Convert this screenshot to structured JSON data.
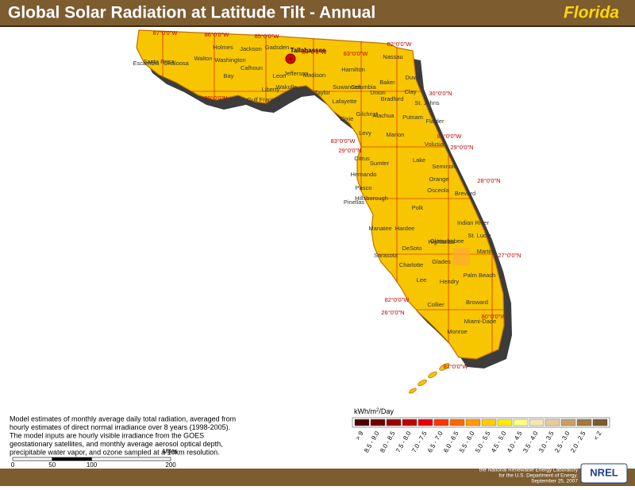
{
  "header": {
    "title": "Global Solar Radiation at Latitude Tilt - Annual",
    "state": "Florida"
  },
  "map": {
    "city": "Tallahassee",
    "counties": [
      "Escambia",
      "Santa Rosa",
      "Okaloosa",
      "Walton",
      "Holmes",
      "Washington",
      "Jackson",
      "Bay",
      "Calhoun",
      "Gulf",
      "Gadsden",
      "Leon",
      "Jefferson",
      "Wakulla",
      "Liberty",
      "Franklin",
      "Madison",
      "Hamilton",
      "Taylor",
      "Suwannee",
      "Columbia",
      "Baker",
      "Nassau",
      "Duval",
      "Clay",
      "St. Johns",
      "Union",
      "Bradford",
      "Lafayette",
      "Dixie",
      "Gilchrist",
      "Alachua",
      "Putnam",
      "Flagler",
      "Levy",
      "Marion",
      "Volusia",
      "Citrus",
      "Sumter",
      "Lake",
      "Seminole",
      "Hernando",
      "Orange",
      "Pasco",
      "Brevard",
      "Osceola",
      "Pinellas",
      "Hillsborough",
      "Polk",
      "Indian River",
      "Manatee",
      "Hardee",
      "Okeechobee",
      "St. Lucie",
      "Highlands",
      "DeSoto",
      "Sarasota",
      "Martin",
      "Charlotte",
      "Glades",
      "Lee",
      "Hendry",
      "Palm Beach",
      "Collier",
      "Broward",
      "Miami-Dade",
      "Monroe"
    ],
    "graticule_labels": [
      "87°0'0\"W",
      "86°0'0\"W",
      "85°0'0\"W",
      "84°0'0\"W",
      "83°0'0\"W",
      "82°0'0\"W",
      "30°0'0\"N",
      "30°0'0\"N",
      "83°0'0\"W",
      "29°0'0\"N",
      "81°0'0\"W",
      "29°0'0\"N",
      "28°0'0\"N",
      "27°0'0\"N",
      "82°0'0\"W",
      "26°0'0\"N",
      "80°0'0\"W",
      "81°0'0\"W"
    ]
  },
  "legend": {
    "unit": "kWh/m",
    "unit_sup": "2",
    "unit_tail": "/Day",
    "classes": [
      "> 9",
      "8.5 - 9.0",
      "8.0 - 8.5",
      "7.5 - 8.0",
      "7.0 - 7.5",
      "6.5 - 7.0",
      "6.0 - 6.5",
      "5.5 - 6.0",
      "5.0 - 5.5",
      "4.5 - 5.0",
      "4.0 - 4.5",
      "3.5 - 4.0",
      "3.0 - 3.5",
      "2.5 - 3.0",
      "2.0 - 2.5",
      "< 2"
    ],
    "colors": [
      "#4a0000",
      "#6e0000",
      "#990000",
      "#c00000",
      "#e60000",
      "#ff3300",
      "#ff6600",
      "#ff9900",
      "#ffcc00",
      "#ffee00",
      "#ffff80",
      "#f5e6b4",
      "#e6cc99",
      "#c8a064",
      "#a07840",
      "#7a5a2e"
    ]
  },
  "description": [
    "Model estimates of monthly average daily total radiation, averaged from",
    "hourly estimates of direct normal irradiance over 8 years (1998-2005).",
    "The model inputs are hourly visible irradiance from the GOES",
    "geostationary satellites, and monthly average aerosol optical depth,",
    "precipitable water vapor, and ozone sampled at a 10km resolution."
  ],
  "scale_bar": {
    "ticks": [
      0,
      50,
      100,
      200
    ],
    "unit": "Miles"
  },
  "credit": [
    "This map was produced by",
    "the National Renewable Energy Laboratory",
    "for the U.S. Department of Energy.",
    "September 25, 2007"
  ],
  "logo": "NREL"
}
